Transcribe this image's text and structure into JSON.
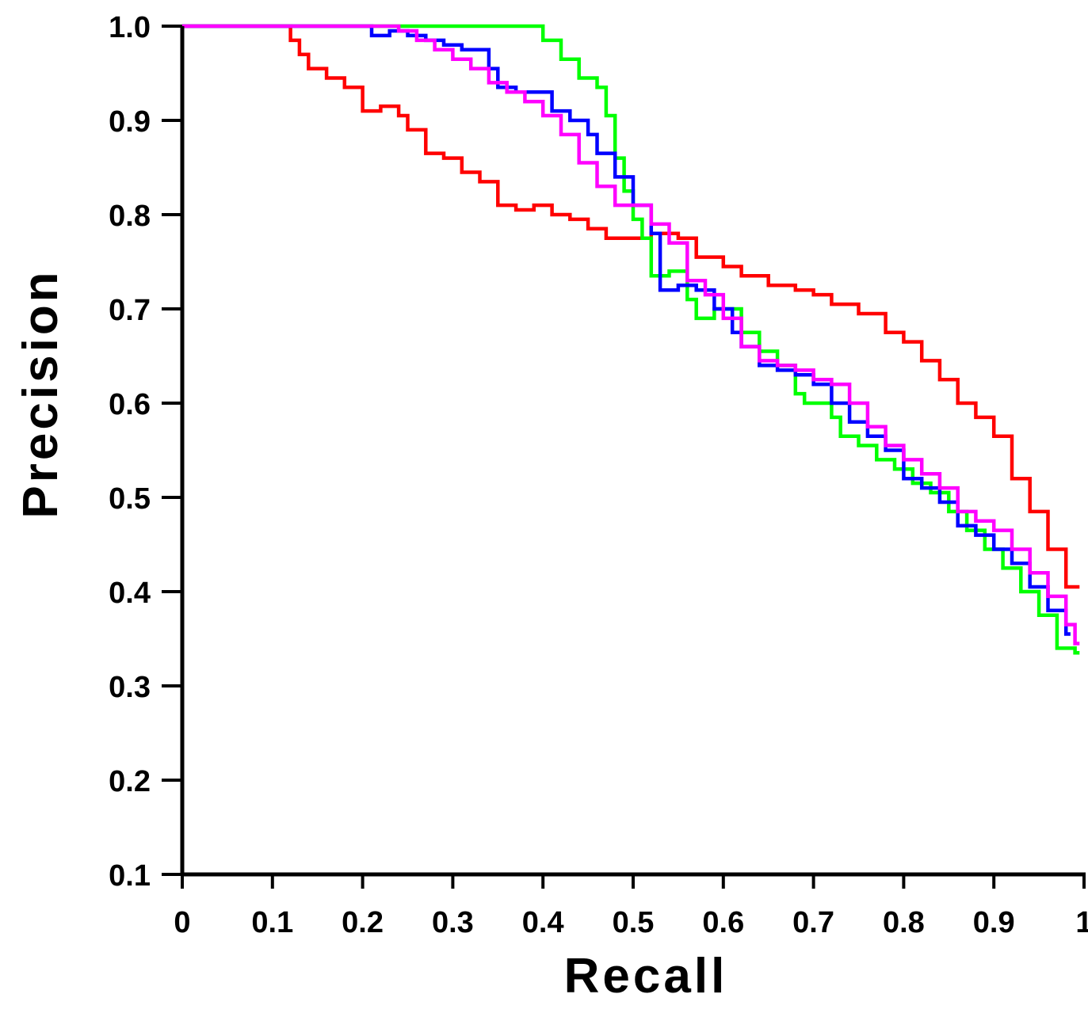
{
  "chart_data": {
    "type": "line",
    "title": "",
    "xlabel": "Recall",
    "ylabel": "Precision",
    "xlim": [
      0,
      1
    ],
    "ylim": [
      0.1,
      1.0
    ],
    "x_ticks": [
      "0",
      "0.1",
      "0.2",
      "0.3",
      "0.4",
      "0.5",
      "0.6",
      "0.7",
      "0.8",
      "0.9",
      "1"
    ],
    "y_ticks": [
      "0.1",
      "0.2",
      "0.3",
      "0.4",
      "0.5",
      "0.6",
      "0.7",
      "0.8",
      "0.9",
      "1.0"
    ],
    "grid": false,
    "legend": "none",
    "series": [
      {
        "color": "#ff0000",
        "x": [
          0,
          0.12,
          0.13,
          0.14,
          0.16,
          0.18,
          0.2,
          0.22,
          0.24,
          0.25,
          0.27,
          0.29,
          0.31,
          0.33,
          0.35,
          0.37,
          0.39,
          0.41,
          0.43,
          0.45,
          0.47,
          0.5,
          0.52,
          0.55,
          0.57,
          0.6,
          0.62,
          0.65,
          0.68,
          0.7,
          0.72,
          0.75,
          0.78,
          0.8,
          0.82,
          0.84,
          0.86,
          0.88,
          0.9,
          0.92,
          0.94,
          0.96,
          0.98,
          0.99
        ],
        "y": [
          1.0,
          0.985,
          0.97,
          0.955,
          0.945,
          0.935,
          0.91,
          0.915,
          0.905,
          0.89,
          0.865,
          0.86,
          0.845,
          0.835,
          0.81,
          0.805,
          0.81,
          0.8,
          0.795,
          0.785,
          0.775,
          0.775,
          0.78,
          0.775,
          0.755,
          0.745,
          0.735,
          0.725,
          0.72,
          0.715,
          0.705,
          0.695,
          0.675,
          0.665,
          0.645,
          0.625,
          0.6,
          0.585,
          0.565,
          0.52,
          0.485,
          0.445,
          0.405,
          0.405
        ]
      },
      {
        "color": "#00ff00",
        "x": [
          0,
          0.38,
          0.4,
          0.42,
          0.44,
          0.46,
          0.47,
          0.48,
          0.49,
          0.5,
          0.51,
          0.52,
          0.54,
          0.56,
          0.57,
          0.59,
          0.6,
          0.62,
          0.64,
          0.66,
          0.68,
          0.69,
          0.71,
          0.72,
          0.73,
          0.75,
          0.77,
          0.79,
          0.81,
          0.83,
          0.85,
          0.87,
          0.89,
          0.91,
          0.93,
          0.95,
          0.97,
          0.99
        ],
        "y": [
          1.0,
          1.0,
          0.985,
          0.965,
          0.945,
          0.935,
          0.905,
          0.86,
          0.825,
          0.795,
          0.775,
          0.735,
          0.74,
          0.71,
          0.69,
          0.7,
          0.7,
          0.675,
          0.655,
          0.64,
          0.61,
          0.6,
          0.6,
          0.585,
          0.565,
          0.555,
          0.54,
          0.53,
          0.515,
          0.505,
          0.485,
          0.465,
          0.445,
          0.425,
          0.4,
          0.375,
          0.34,
          0.335
        ]
      },
      {
        "color": "#0000ff",
        "x": [
          0,
          0.21,
          0.23,
          0.25,
          0.27,
          0.29,
          0.31,
          0.34,
          0.35,
          0.37,
          0.39,
          0.41,
          0.43,
          0.45,
          0.46,
          0.48,
          0.5,
          0.52,
          0.53,
          0.55,
          0.57,
          0.59,
          0.61,
          0.62,
          0.64,
          0.66,
          0.68,
          0.7,
          0.72,
          0.74,
          0.76,
          0.78,
          0.8,
          0.82,
          0.84,
          0.86,
          0.88,
          0.9,
          0.92,
          0.94,
          0.96,
          0.98
        ],
        "y": [
          1.0,
          0.99,
          0.995,
          0.99,
          0.985,
          0.98,
          0.975,
          0.955,
          0.935,
          0.93,
          0.93,
          0.91,
          0.9,
          0.885,
          0.865,
          0.84,
          0.81,
          0.78,
          0.72,
          0.725,
          0.72,
          0.7,
          0.675,
          0.66,
          0.64,
          0.635,
          0.63,
          0.62,
          0.6,
          0.58,
          0.565,
          0.55,
          0.52,
          0.51,
          0.495,
          0.47,
          0.46,
          0.445,
          0.43,
          0.405,
          0.38,
          0.355
        ]
      },
      {
        "color": "#ff00ff",
        "x": [
          0,
          0.24,
          0.26,
          0.28,
          0.3,
          0.32,
          0.34,
          0.36,
          0.38,
          0.4,
          0.42,
          0.44,
          0.46,
          0.48,
          0.5,
          0.52,
          0.54,
          0.56,
          0.58,
          0.6,
          0.62,
          0.64,
          0.66,
          0.68,
          0.7,
          0.72,
          0.74,
          0.76,
          0.78,
          0.8,
          0.82,
          0.84,
          0.86,
          0.88,
          0.9,
          0.92,
          0.94,
          0.96,
          0.98,
          0.99
        ],
        "y": [
          1.0,
          0.995,
          0.985,
          0.975,
          0.965,
          0.955,
          0.94,
          0.93,
          0.92,
          0.905,
          0.885,
          0.855,
          0.83,
          0.81,
          0.81,
          0.79,
          0.77,
          0.73,
          0.715,
          0.69,
          0.66,
          0.645,
          0.64,
          0.635,
          0.625,
          0.62,
          0.6,
          0.575,
          0.555,
          0.54,
          0.525,
          0.51,
          0.485,
          0.475,
          0.465,
          0.445,
          0.42,
          0.395,
          0.365,
          0.345
        ]
      }
    ]
  }
}
